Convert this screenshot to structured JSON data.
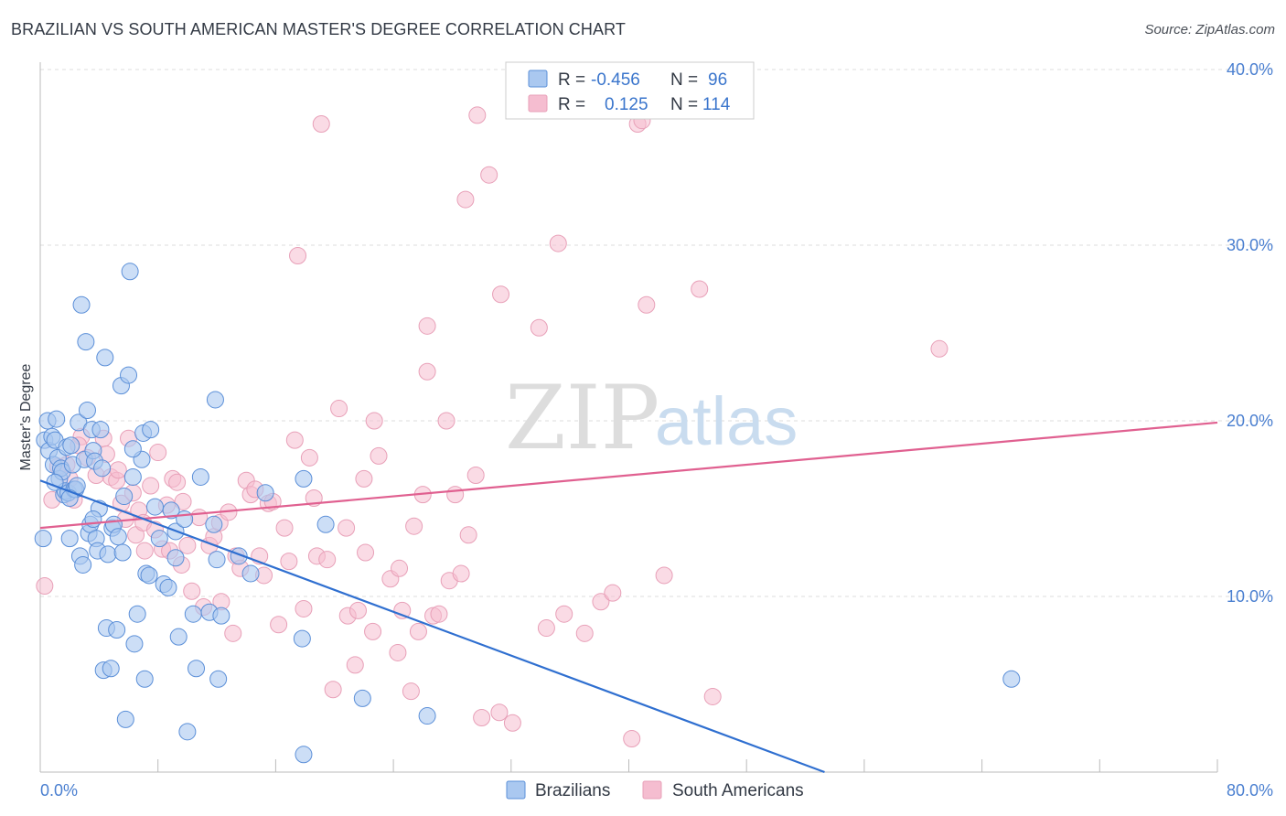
{
  "header": {
    "title": "BRAZILIAN VS SOUTH AMERICAN MASTER'S DEGREE CORRELATION CHART",
    "source": "Source: ZipAtlas.com"
  },
  "watermark": {
    "zip": "ZIP",
    "atlas": "atlas"
  },
  "colors": {
    "brazilians_fill": "#aac8f0",
    "brazilians_stroke": "#5b8fd8",
    "brazilians_line": "#2f6fd0",
    "south_fill": "#f5bdd0",
    "south_stroke": "#e8a0b8",
    "south_line": "#e06090",
    "axis_label": "#4a7fd0",
    "grid": "#dddddd"
  },
  "legend": {
    "rows": [
      {
        "r_label": "R =",
        "r_value": "-0.456",
        "n_label": "N =",
        "n_value": "96"
      },
      {
        "r_label": "R =",
        "r_value": "0.125",
        "n_label": "N =",
        "n_value": "114"
      }
    ]
  },
  "chart_data": {
    "type": "scatter",
    "title": "BRAZILIAN VS SOUTH AMERICAN MASTER'S DEGREE CORRELATION CHART",
    "xlabel": "",
    "ylabel": "Master's Degree",
    "xlim": [
      0,
      80
    ],
    "ylim": [
      0,
      40
    ],
    "x_tick_labels": [
      "0.0%",
      "80.0%"
    ],
    "y_ticks": [
      10,
      20,
      30,
      40
    ],
    "y_tick_labels": [
      "10.0%",
      "20.0%",
      "30.0%",
      "40.0%"
    ],
    "grid": true,
    "series": [
      {
        "name": "Brazilians",
        "r": -0.456,
        "n": 96,
        "trend": {
          "x0": 0,
          "y0": 16.6,
          "x1": 53.3,
          "y1": 0
        },
        "points": [
          [
            0.2,
            13.3
          ],
          [
            0.3,
            18.9
          ],
          [
            0.5,
            20.0
          ],
          [
            0.6,
            18.3
          ],
          [
            0.8,
            19.1
          ],
          [
            0.9,
            17.5
          ],
          [
            1.0,
            18.9
          ],
          [
            1.1,
            20.1
          ],
          [
            1.2,
            17.9
          ],
          [
            1.3,
            16.7
          ],
          [
            1.4,
            17.3
          ],
          [
            1.5,
            17.1
          ],
          [
            1.6,
            15.8
          ],
          [
            1.7,
            16.0
          ],
          [
            1.8,
            18.5
          ],
          [
            1.9,
            15.9
          ],
          [
            2.0,
            13.3
          ],
          [
            2.1,
            18.6
          ],
          [
            2.2,
            17.5
          ],
          [
            2.3,
            16.1
          ],
          [
            2.4,
            16.1
          ],
          [
            2.5,
            16.3
          ],
          [
            2.6,
            19.9
          ],
          [
            2.7,
            12.3
          ],
          [
            2.8,
            26.6
          ],
          [
            2.9,
            11.8
          ],
          [
            3.0,
            17.8
          ],
          [
            3.1,
            24.5
          ],
          [
            3.2,
            20.6
          ],
          [
            3.3,
            13.6
          ],
          [
            3.4,
            14.1
          ],
          [
            3.5,
            19.5
          ],
          [
            3.6,
            18.3
          ],
          [
            3.7,
            17.7
          ],
          [
            3.8,
            13.3
          ],
          [
            3.9,
            12.6
          ],
          [
            4.0,
            15.0
          ],
          [
            4.1,
            19.5
          ],
          [
            4.2,
            17.3
          ],
          [
            4.3,
            5.8
          ],
          [
            4.4,
            23.6
          ],
          [
            4.5,
            8.2
          ],
          [
            4.6,
            12.4
          ],
          [
            4.8,
            5.9
          ],
          [
            4.9,
            13.9
          ],
          [
            5.0,
            14.1
          ],
          [
            5.2,
            8.1
          ],
          [
            5.3,
            13.4
          ],
          [
            5.5,
            22.0
          ],
          [
            5.7,
            15.7
          ],
          [
            5.8,
            3.0
          ],
          [
            6.0,
            22.6
          ],
          [
            6.1,
            28.5
          ],
          [
            6.3,
            16.8
          ],
          [
            6.4,
            7.3
          ],
          [
            6.6,
            9.0
          ],
          [
            6.9,
            17.8
          ],
          [
            7.0,
            19.3
          ],
          [
            7.1,
            5.3
          ],
          [
            7.2,
            11.3
          ],
          [
            7.4,
            11.2
          ],
          [
            7.5,
            19.5
          ],
          [
            7.8,
            15.1
          ],
          [
            8.1,
            13.3
          ],
          [
            8.4,
            10.7
          ],
          [
            8.7,
            10.5
          ],
          [
            8.9,
            14.9
          ],
          [
            9.2,
            13.7
          ],
          [
            9.4,
            7.7
          ],
          [
            9.8,
            14.4
          ],
          [
            10.0,
            2.3
          ],
          [
            10.4,
            9.0
          ],
          [
            10.6,
            5.9
          ],
          [
            10.9,
            16.8
          ],
          [
            11.5,
            9.1
          ],
          [
            11.8,
            14.1
          ],
          [
            11.9,
            21.2
          ],
          [
            12.0,
            12.1
          ],
          [
            12.1,
            5.3
          ],
          [
            12.3,
            8.9
          ],
          [
            13.5,
            12.3
          ],
          [
            14.3,
            11.3
          ],
          [
            15.3,
            15.9
          ],
          [
            17.8,
            7.6
          ],
          [
            17.9,
            1.0
          ],
          [
            17.9,
            16.7
          ],
          [
            19.4,
            14.1
          ],
          [
            21.9,
            4.2
          ],
          [
            26.3,
            3.2
          ],
          [
            66.0,
            5.3
          ],
          [
            1.0,
            16.5
          ],
          [
            2.0,
            15.6
          ],
          [
            3.6,
            14.4
          ],
          [
            5.6,
            12.5
          ],
          [
            6.3,
            18.4
          ],
          [
            9.2,
            12.2
          ]
        ]
      },
      {
        "name": "South Americans",
        "r": 0.125,
        "n": 114,
        "trend": {
          "x0": 0,
          "y0": 13.9,
          "x1": 80,
          "y1": 19.9
        },
        "points": [
          [
            0.3,
            10.6
          ],
          [
            0.8,
            15.5
          ],
          [
            1.2,
            17.4
          ],
          [
            1.8,
            17.5
          ],
          [
            2.0,
            16.7
          ],
          [
            2.3,
            15.5
          ],
          [
            2.8,
            19.1
          ],
          [
            3.2,
            17.9
          ],
          [
            3.8,
            16.9
          ],
          [
            4.3,
            19.0
          ],
          [
            4.5,
            18.1
          ],
          [
            4.8,
            16.8
          ],
          [
            5.2,
            16.6
          ],
          [
            5.3,
            17.2
          ],
          [
            5.5,
            15.3
          ],
          [
            5.8,
            14.4
          ],
          [
            6.3,
            15.9
          ],
          [
            6.5,
            13.5
          ],
          [
            6.7,
            14.9
          ],
          [
            7.0,
            14.2
          ],
          [
            7.1,
            12.6
          ],
          [
            7.5,
            16.3
          ],
          [
            7.8,
            13.8
          ],
          [
            8.0,
            18.2
          ],
          [
            8.3,
            12.7
          ],
          [
            8.6,
            15.2
          ],
          [
            8.8,
            12.6
          ],
          [
            9.0,
            16.7
          ],
          [
            9.3,
            16.5
          ],
          [
            9.7,
            15.4
          ],
          [
            10.0,
            12.9
          ],
          [
            10.3,
            10.3
          ],
          [
            10.8,
            14.5
          ],
          [
            11.1,
            9.4
          ],
          [
            11.5,
            12.9
          ],
          [
            11.8,
            13.4
          ],
          [
            12.2,
            14.2
          ],
          [
            12.3,
            9.7
          ],
          [
            12.8,
            14.8
          ],
          [
            13.1,
            7.9
          ],
          [
            13.3,
            12.3
          ],
          [
            13.6,
            11.6
          ],
          [
            14.0,
            16.6
          ],
          [
            14.3,
            15.8
          ],
          [
            14.6,
            16.1
          ],
          [
            14.9,
            12.3
          ],
          [
            15.2,
            11.2
          ],
          [
            15.5,
            15.3
          ],
          [
            15.8,
            15.4
          ],
          [
            16.6,
            13.9
          ],
          [
            16.9,
            12.0
          ],
          [
            17.3,
            18.9
          ],
          [
            17.5,
            29.4
          ],
          [
            17.9,
            9.3
          ],
          [
            18.3,
            17.9
          ],
          [
            18.6,
            15.6
          ],
          [
            18.8,
            12.3
          ],
          [
            19.1,
            36.9
          ],
          [
            19.5,
            12.1
          ],
          [
            19.9,
            4.7
          ],
          [
            20.3,
            20.7
          ],
          [
            20.8,
            13.9
          ],
          [
            20.9,
            8.9
          ],
          [
            21.4,
            6.1
          ],
          [
            21.6,
            9.2
          ],
          [
            22.0,
            16.7
          ],
          [
            22.1,
            12.5
          ],
          [
            22.6,
            8.0
          ],
          [
            22.7,
            20.0
          ],
          [
            23.0,
            18.0
          ],
          [
            23.8,
            11.0
          ],
          [
            24.3,
            6.8
          ],
          [
            24.4,
            11.6
          ],
          [
            24.6,
            9.2
          ],
          [
            25.2,
            4.6
          ],
          [
            25.4,
            14.0
          ],
          [
            25.7,
            8.0
          ],
          [
            26.0,
            15.8
          ],
          [
            26.3,
            25.4
          ],
          [
            26.3,
            22.8
          ],
          [
            26.7,
            8.9
          ],
          [
            27.1,
            9.0
          ],
          [
            27.6,
            20.0
          ],
          [
            27.8,
            10.9
          ],
          [
            28.2,
            15.8
          ],
          [
            28.6,
            11.3
          ],
          [
            28.9,
            32.6
          ],
          [
            29.1,
            13.5
          ],
          [
            29.6,
            16.9
          ],
          [
            29.7,
            37.4
          ],
          [
            30.0,
            3.1
          ],
          [
            30.5,
            34.0
          ],
          [
            31.2,
            3.4
          ],
          [
            31.3,
            27.2
          ],
          [
            32.1,
            2.8
          ],
          [
            33.9,
            25.3
          ],
          [
            35.2,
            30.1
          ],
          [
            35.6,
            9.0
          ],
          [
            37.0,
            7.9
          ],
          [
            38.1,
            9.7
          ],
          [
            38.9,
            10.2
          ],
          [
            40.2,
            1.9
          ],
          [
            40.6,
            36.9
          ],
          [
            40.9,
            37.1
          ],
          [
            41.2,
            26.6
          ],
          [
            42.4,
            11.2
          ],
          [
            44.8,
            27.5
          ],
          [
            45.7,
            4.3
          ],
          [
            61.1,
            24.1
          ],
          [
            2.6,
            18.6
          ],
          [
            6.0,
            19.0
          ],
          [
            9.6,
            11.8
          ],
          [
            16.2,
            8.4
          ],
          [
            34.4,
            8.2
          ]
        ]
      }
    ]
  }
}
